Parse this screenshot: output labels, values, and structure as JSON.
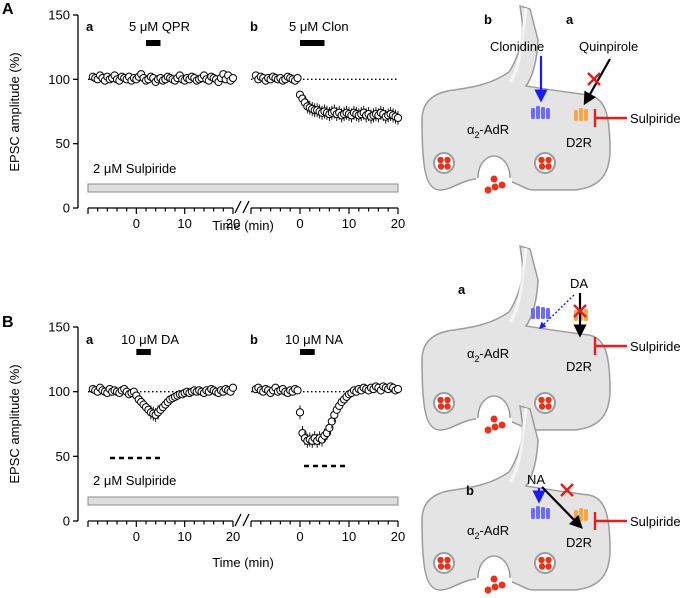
{
  "figure": {
    "panel_A": {
      "label": "A",
      "sub_a": {
        "label": "a",
        "drug_conc": "5",
        "drug_unit": "μM",
        "drug": "QPR",
        "control_label_mu": "2 μM",
        "control_drug": "Sulpiride"
      },
      "sub_b": {
        "label": "b",
        "drug_conc": "5",
        "drug_unit": "μM",
        "drug": "Clon"
      },
      "ylabel": "EPSC amplitude (%)",
      "xlabel": "Time (min)",
      "schematic": {
        "label_b": "b",
        "label_a": "a",
        "clonidine": "Clonidine",
        "quinpirole": "Quinpirole",
        "sulpiride": "Sulpiride",
        "alpha_receptor": "α",
        "alpha_sub": "2",
        "alpha_suffix": "-AdR",
        "d2r": "D2R"
      }
    },
    "panel_B": {
      "label": "B",
      "sub_a": {
        "label": "a",
        "drug_conc": "10",
        "drug_unit": "μM",
        "drug": "DA",
        "control_label_mu": "2 μM",
        "control_drug": "Sulpiride"
      },
      "sub_b": {
        "label": "b",
        "drug_conc": "10",
        "drug_unit": "μM",
        "drug": "NA"
      },
      "ylabel": "EPSC amplitude (%)",
      "xlabel": "Time (min)",
      "schematic_top": {
        "label": "a",
        "agonist": "DA",
        "sulpiride": "Sulpiride",
        "alpha_receptor": "α",
        "alpha_sub": "2",
        "alpha_suffix": "-AdR",
        "d2r": "D2R"
      },
      "schematic_bottom": {
        "label": "b",
        "agonist": "NA",
        "sulpiride": "Sulpiride",
        "alpha_receptor": "α",
        "alpha_sub": "2",
        "alpha_suffix": "-AdR",
        "d2r": "D2R"
      }
    },
    "colors": {
      "alpha_receptor": "#6b6bff",
      "d2_receptor": "#f5a64a",
      "clonidine_arrow": "#1a1aff",
      "block": "#e02020",
      "neuron_fill": "#e4e4e4",
      "neuron_stroke": "#9c9c9c",
      "vesicle": "#e8321e"
    }
  },
  "chart_data": [
    {
      "type": "scatter",
      "panel": "A",
      "ylabel": "EPSC amplitude (%)",
      "xlabel": "Time (min)",
      "ylim": [
        0,
        150
      ],
      "yticks": [
        0,
        50,
        100,
        150
      ],
      "baseline": 100,
      "segments": [
        {
          "name": "a",
          "drug": "5 μM QPR",
          "drug_on": [
            2,
            5
          ],
          "xticks": [
            0,
            10,
            20
          ],
          "x": [
            -9,
            -8.5,
            -8,
            -7.5,
            -7,
            -6.5,
            -6,
            -5.5,
            -5,
            -4.5,
            -4,
            -3.5,
            -3,
            -2.5,
            -2,
            -1.5,
            -1,
            -0.5,
            0,
            0.5,
            1,
            1.5,
            2,
            2.5,
            3,
            3.5,
            4,
            4.5,
            5,
            5.5,
            6,
            6.5,
            7,
            7.5,
            8,
            8.5,
            9,
            9.5,
            10,
            10.5,
            11,
            11.5,
            12,
            12.5,
            13,
            13.5,
            14,
            14.5,
            15,
            15.5,
            16,
            16.5,
            17,
            17.5,
            18,
            18.5,
            19,
            19.5,
            20
          ],
          "y": [
            102,
            101,
            100,
            103,
            101,
            99,
            102,
            100,
            101,
            103,
            100,
            99,
            102,
            101,
            100,
            102,
            99,
            101,
            100,
            102,
            104,
            101,
            99,
            100,
            102,
            101,
            98,
            100,
            101,
            99,
            100,
            102,
            101,
            100,
            99,
            101,
            103,
            100,
            99,
            101,
            100,
            102,
            101,
            99,
            100,
            101,
            103,
            100,
            99,
            102,
            101,
            100,
            98,
            101,
            104,
            100,
            103,
            99,
            101
          ]
        },
        {
          "name": "b",
          "drug": "5 μM Clon",
          "drug_on": [
            0,
            5
          ],
          "xticks": [
            0,
            10,
            20
          ],
          "x": [
            -9,
            -8.5,
            -8,
            -7.5,
            -7,
            -6.5,
            -6,
            -5.5,
            -5,
            -4.5,
            -4,
            -3.5,
            -3,
            -2.5,
            -2,
            -1.5,
            -1,
            -0.5,
            0,
            0.5,
            1,
            1.5,
            2,
            2.5,
            3,
            3.5,
            4,
            4.5,
            5,
            5.5,
            6,
            6.5,
            7,
            7.5,
            8,
            8.5,
            9,
            9.5,
            10,
            10.5,
            11,
            11.5,
            12,
            12.5,
            13,
            13.5,
            14,
            14.5,
            15,
            15.5,
            16,
            16.5,
            17,
            17.5,
            18,
            18.5,
            19,
            19.5,
            20
          ],
          "y": [
            103,
            100,
            102,
            101,
            99,
            101,
            100,
            102,
            101,
            100,
            101,
            99,
            100,
            102,
            101,
            100,
            99,
            101,
            88,
            85,
            82,
            79,
            78,
            77,
            76,
            76,
            75,
            74,
            75,
            74,
            73,
            74,
            75,
            73,
            74,
            72,
            73,
            74,
            73,
            72,
            74,
            73,
            72,
            73,
            74,
            72,
            73,
            71,
            72,
            73,
            72,
            74,
            73,
            71,
            72,
            73,
            72,
            71,
            70
          ]
        }
      ],
      "control": "2 μM Sulpiride"
    },
    {
      "type": "scatter",
      "panel": "B",
      "ylabel": "EPSC amplitude (%)",
      "xlabel": "Time (min)",
      "ylim": [
        0,
        150
      ],
      "yticks": [
        0,
        50,
        100,
        150
      ],
      "baseline": 100,
      "segments": [
        {
          "name": "a",
          "drug": "10 μM DA",
          "drug_on": [
            0,
            3
          ],
          "xticks": [
            0,
            10,
            20
          ],
          "x": [
            -9,
            -8.5,
            -8,
            -7.5,
            -7,
            -6.5,
            -6,
            -5.5,
            -5,
            -4.5,
            -4,
            -3.5,
            -3,
            -2.5,
            -2,
            -1.5,
            -1,
            -0.5,
            0,
            0.5,
            1,
            1.5,
            2,
            2.5,
            3,
            3.5,
            4,
            4.5,
            5,
            5.5,
            6,
            6.5,
            7,
            7.5,
            8,
            8.5,
            9,
            9.5,
            10,
            10.5,
            11,
            11.5,
            12,
            12.5,
            13,
            13.5,
            14,
            14.5,
            15,
            15.5,
            16,
            16.5,
            17,
            17.5,
            18,
            18.5,
            19,
            19.5,
            20
          ],
          "y": [
            102,
            101,
            100,
            103,
            101,
            100,
            99,
            102,
            100,
            101,
            100,
            99,
            101,
            102,
            100,
            98,
            99,
            100,
            97,
            94,
            92,
            90,
            88,
            86,
            84,
            83,
            82,
            84,
            86,
            88,
            90,
            92,
            94,
            95,
            96,
            97,
            98,
            98,
            99,
            100,
            99,
            100,
            101,
            100,
            101,
            100,
            99,
            101,
            100,
            102,
            101,
            100,
            99,
            101,
            100,
            102,
            101,
            100,
            103
          ]
        },
        {
          "name": "b",
          "drug": "10 μM NA",
          "drug_on": [
            0,
            3
          ],
          "xticks": [
            0,
            10,
            20
          ],
          "x": [
            -9,
            -8.5,
            -8,
            -7.5,
            -7,
            -6.5,
            -6,
            -5.5,
            -5,
            -4.5,
            -4,
            -3.5,
            -3,
            -2.5,
            -2,
            -1.5,
            -1,
            -0.5,
            0,
            0.5,
            1,
            1.5,
            2,
            2.5,
            3,
            3.5,
            4,
            4.5,
            5,
            5.5,
            6,
            6.5,
            7,
            7.5,
            8,
            8.5,
            9,
            9.5,
            10,
            10.5,
            11,
            11.5,
            12,
            12.5,
            13,
            13.5,
            14,
            14.5,
            15,
            15.5,
            16,
            16.5,
            17,
            17.5,
            18,
            18.5,
            19,
            19.5,
            20
          ],
          "y": [
            102,
            103,
            101,
            100,
            102,
            101,
            99,
            101,
            103,
            100,
            101,
            102,
            100,
            99,
            101,
            100,
            102,
            101,
            84,
            68,
            64,
            62,
            63,
            62,
            64,
            62,
            64,
            63,
            66,
            68,
            72,
            77,
            82,
            86,
            89,
            92,
            94,
            96,
            98,
            99,
            101,
            100,
            102,
            101,
            103,
            102,
            101,
            103,
            102,
            104,
            103,
            101,
            104,
            103,
            102,
            104,
            103,
            101,
            102
          ]
        }
      ],
      "control": "2 μM Sulpiride"
    }
  ]
}
